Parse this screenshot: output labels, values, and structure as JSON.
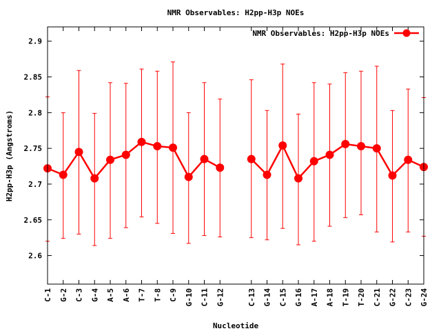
{
  "chart_data": {
    "type": "line",
    "title": "NMR Observables: H2pp-H3p NOEs",
    "xlabel": "Nucleotide",
    "ylabel": "H2pp-H3p (Angstroms)",
    "ylim": [
      2.56,
      2.92
    ],
    "yticks": [
      2.6,
      2.65,
      2.7,
      2.75,
      2.8,
      2.85,
      2.9
    ],
    "ytick_labels": [
      "2.6",
      "2.65",
      "2.7",
      "2.75",
      "2.8",
      "2.85",
      "2.9"
    ],
    "legend_position": "top-right",
    "grid": false,
    "color": "#ff0000",
    "series": [
      {
        "name": "NMR Observables: H2pp-H3p NOEs",
        "points": [
          {
            "x": 1,
            "label": "C-1",
            "y": 2.722,
            "low": 2.62,
            "high": 2.822
          },
          {
            "x": 2,
            "label": "G-2",
            "y": 2.713,
            "low": 2.624,
            "high": 2.8
          },
          {
            "x": 3,
            "label": "C-3",
            "y": 2.745,
            "low": 2.63,
            "high": 2.859
          },
          {
            "x": 4,
            "label": "G-4",
            "y": 2.708,
            "low": 2.614,
            "high": 2.799
          },
          {
            "x": 5,
            "label": "A-5",
            "y": 2.734,
            "low": 2.624,
            "high": 2.842
          },
          {
            "x": 6,
            "label": "A-6",
            "y": 2.741,
            "low": 2.639,
            "high": 2.841
          },
          {
            "x": 7,
            "label": "T-7",
            "y": 2.759,
            "low": 2.654,
            "high": 2.861
          },
          {
            "x": 8,
            "label": "T-8",
            "y": 2.753,
            "low": 2.645,
            "high": 2.858
          },
          {
            "x": 9,
            "label": "C-9",
            "y": 2.751,
            "low": 2.631,
            "high": 2.871
          },
          {
            "x": 10,
            "label": "G-10",
            "y": 2.71,
            "low": 2.617,
            "high": 2.8
          },
          {
            "x": 11,
            "label": "C-11",
            "y": 2.735,
            "low": 2.628,
            "high": 2.842
          },
          {
            "x": 12,
            "label": "G-12",
            "y": 2.723,
            "low": 2.626,
            "high": 2.819
          },
          {
            "x": 14,
            "label": "C-13",
            "y": 2.735,
            "low": 2.625,
            "high": 2.846
          },
          {
            "x": 15,
            "label": "G-14",
            "y": 2.713,
            "low": 2.622,
            "high": 2.803
          },
          {
            "x": 16,
            "label": "C-15",
            "y": 2.754,
            "low": 2.638,
            "high": 2.868
          },
          {
            "x": 17,
            "label": "G-16",
            "y": 2.708,
            "low": 2.615,
            "high": 2.798
          },
          {
            "x": 18,
            "label": "A-17",
            "y": 2.732,
            "low": 2.62,
            "high": 2.842
          },
          {
            "x": 19,
            "label": "A-18",
            "y": 2.741,
            "low": 2.641,
            "high": 2.84
          },
          {
            "x": 20,
            "label": "T-19",
            "y": 2.756,
            "low": 2.653,
            "high": 2.856
          },
          {
            "x": 21,
            "label": "T-20",
            "y": 2.753,
            "low": 2.657,
            "high": 2.858
          },
          {
            "x": 22,
            "label": "C-21",
            "y": 2.75,
            "low": 2.633,
            "high": 2.865
          },
          {
            "x": 23,
            "label": "G-22",
            "y": 2.712,
            "low": 2.619,
            "high": 2.803
          },
          {
            "x": 24,
            "label": "C-23",
            "y": 2.734,
            "low": 2.633,
            "high": 2.833
          },
          {
            "x": 25,
            "label": "G-24",
            "y": 2.724,
            "low": 2.627,
            "high": 2.821
          }
        ]
      }
    ]
  }
}
